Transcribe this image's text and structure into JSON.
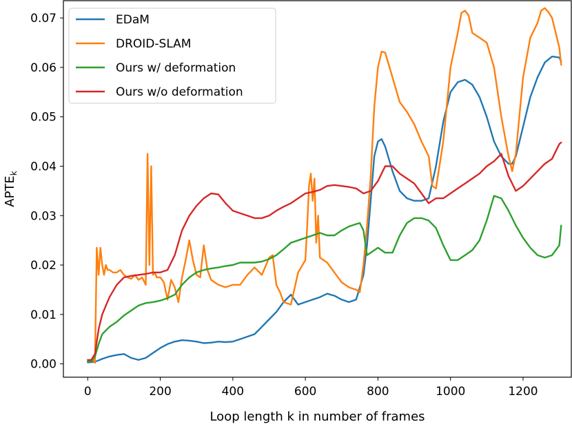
{
  "chart_data": {
    "type": "line",
    "title": "",
    "xlabel": "Loop length k in number of frames",
    "ylabel": "APTE",
    "ylabel_subscript": "k",
    "xlim": [
      -67,
      1333
    ],
    "ylim": [
      -0.0027,
      0.0735
    ],
    "xticks": [
      0,
      200,
      400,
      600,
      800,
      1000,
      1200
    ],
    "yticks": [
      0.0,
      0.01,
      0.02,
      0.03,
      0.04,
      0.05,
      0.06,
      0.07
    ],
    "ytick_labels": [
      "0.00",
      "0.01",
      "0.02",
      "0.03",
      "0.04",
      "0.05",
      "0.06",
      "0.07"
    ],
    "grid": false,
    "legend_position": "top-left",
    "series": [
      {
        "name": "EDaM",
        "color": "#1f77b4",
        "x": [
          0,
          20,
          40,
          60,
          80,
          100,
          120,
          140,
          160,
          180,
          200,
          220,
          240,
          260,
          280,
          300,
          320,
          340,
          360,
          380,
          400,
          420,
          440,
          460,
          480,
          500,
          520,
          540,
          560,
          580,
          600,
          620,
          640,
          660,
          680,
          700,
          720,
          740,
          760,
          770,
          780,
          790,
          800,
          810,
          820,
          840,
          860,
          880,
          900,
          920,
          940,
          960,
          980,
          1000,
          1020,
          1040,
          1060,
          1080,
          1100,
          1120,
          1140,
          1160,
          1170,
          1180,
          1200,
          1220,
          1240,
          1260,
          1280,
          1300,
          1305
        ],
        "y": [
          0.0003,
          0.0004,
          0.001,
          0.0015,
          0.0018,
          0.002,
          0.0012,
          0.0008,
          0.0012,
          0.0022,
          0.0032,
          0.004,
          0.0045,
          0.0048,
          0.0047,
          0.0045,
          0.0042,
          0.0043,
          0.0045,
          0.0044,
          0.0045,
          0.005,
          0.0055,
          0.006,
          0.0075,
          0.009,
          0.0105,
          0.0125,
          0.014,
          0.012,
          0.0125,
          0.013,
          0.0135,
          0.0142,
          0.0138,
          0.013,
          0.0125,
          0.013,
          0.018,
          0.024,
          0.033,
          0.042,
          0.045,
          0.0455,
          0.044,
          0.039,
          0.035,
          0.0335,
          0.033,
          0.033,
          0.0335,
          0.04,
          0.049,
          0.055,
          0.057,
          0.0575,
          0.0565,
          0.054,
          0.05,
          0.045,
          0.042,
          0.0405,
          0.0405,
          0.042,
          0.048,
          0.054,
          0.058,
          0.061,
          0.0622,
          0.062,
          0.0612
        ]
      },
      {
        "name": "DROID-SLAM",
        "color": "#ff7f0e",
        "x": [
          0,
          15,
          20,
          25,
          30,
          35,
          40,
          45,
          50,
          55,
          60,
          70,
          80,
          90,
          100,
          110,
          120,
          130,
          140,
          150,
          160,
          165,
          170,
          175,
          180,
          185,
          190,
          200,
          210,
          220,
          230,
          240,
          250,
          260,
          270,
          280,
          290,
          300,
          310,
          320,
          330,
          340,
          360,
          380,
          400,
          420,
          440,
          460,
          480,
          500,
          510,
          520,
          530,
          540,
          560,
          580,
          600,
          605,
          610,
          615,
          620,
          625,
          630,
          635,
          640,
          660,
          680,
          700,
          720,
          740,
          750,
          760,
          770,
          780,
          790,
          800,
          810,
          820,
          840,
          860,
          880,
          900,
          920,
          940,
          950,
          960,
          980,
          1000,
          1020,
          1030,
          1040,
          1050,
          1060,
          1080,
          1100,
          1120,
          1140,
          1160,
          1170,
          1180,
          1200,
          1220,
          1240,
          1250,
          1260,
          1270,
          1280,
          1300,
          1305
        ],
        "y": [
          0.0005,
          0.0008,
          0.0002,
          0.0235,
          0.018,
          0.0235,
          0.02,
          0.018,
          0.02,
          0.019,
          0.019,
          0.0185,
          0.0185,
          0.019,
          0.018,
          0.0175,
          0.0172,
          0.018,
          0.017,
          0.0175,
          0.016,
          0.0425,
          0.02,
          0.04,
          0.018,
          0.0185,
          0.0175,
          0.0175,
          0.0165,
          0.013,
          0.017,
          0.0155,
          0.0125,
          0.0175,
          0.021,
          0.025,
          0.021,
          0.018,
          0.0175,
          0.024,
          0.019,
          0.017,
          0.016,
          0.0155,
          0.016,
          0.016,
          0.018,
          0.0195,
          0.018,
          0.0215,
          0.022,
          0.016,
          0.0145,
          0.0125,
          0.012,
          0.0185,
          0.021,
          0.028,
          0.036,
          0.0385,
          0.033,
          0.0375,
          0.0245,
          0.03,
          0.0215,
          0.0205,
          0.0185,
          0.0165,
          0.0155,
          0.015,
          0.0145,
          0.02,
          0.028,
          0.038,
          0.052,
          0.06,
          0.0632,
          0.063,
          0.058,
          0.053,
          0.051,
          0.0485,
          0.045,
          0.042,
          0.036,
          0.0355,
          0.045,
          0.06,
          0.067,
          0.071,
          0.0715,
          0.0705,
          0.067,
          0.066,
          0.065,
          0.06,
          0.05,
          0.042,
          0.039,
          0.0425,
          0.058,
          0.066,
          0.069,
          0.0715,
          0.072,
          0.0712,
          0.07,
          0.064,
          0.0605
        ]
      },
      {
        "name": "Ours w/ deformation",
        "color": "#2ca02c",
        "x": [
          0,
          10,
          20,
          30,
          40,
          60,
          80,
          100,
          120,
          140,
          160,
          180,
          200,
          220,
          240,
          260,
          280,
          300,
          320,
          340,
          360,
          380,
          400,
          420,
          440,
          460,
          480,
          500,
          520,
          540,
          560,
          580,
          600,
          620,
          640,
          660,
          680,
          700,
          720,
          740,
          750,
          760,
          770,
          780,
          800,
          820,
          840,
          860,
          880,
          900,
          920,
          940,
          960,
          980,
          1000,
          1020,
          1040,
          1060,
          1080,
          1100,
          1120,
          1140,
          1160,
          1180,
          1200,
          1220,
          1240,
          1260,
          1280,
          1300,
          1305
        ],
        "y": [
          0.0005,
          0.0005,
          0.0015,
          0.004,
          0.006,
          0.0075,
          0.0085,
          0.0098,
          0.0108,
          0.0118,
          0.0123,
          0.0125,
          0.0128,
          0.0133,
          0.014,
          0.016,
          0.0175,
          0.0185,
          0.019,
          0.0193,
          0.0195,
          0.0198,
          0.02,
          0.0205,
          0.0205,
          0.0205,
          0.0207,
          0.0212,
          0.022,
          0.0232,
          0.0245,
          0.025,
          0.0255,
          0.026,
          0.0265,
          0.026,
          0.026,
          0.027,
          0.0278,
          0.0283,
          0.0285,
          0.027,
          0.022,
          0.0225,
          0.0235,
          0.0225,
          0.0225,
          0.026,
          0.0285,
          0.0295,
          0.0295,
          0.029,
          0.0275,
          0.024,
          0.021,
          0.021,
          0.022,
          0.023,
          0.025,
          0.029,
          0.034,
          0.0335,
          0.031,
          0.028,
          0.0255,
          0.0235,
          0.022,
          0.0215,
          0.022,
          0.024,
          0.028
        ]
      },
      {
        "name": "Ours w/o deformation",
        "color": "#d62728",
        "x": [
          0,
          10,
          20,
          30,
          40,
          60,
          80,
          100,
          120,
          140,
          160,
          180,
          200,
          220,
          240,
          260,
          280,
          300,
          320,
          340,
          360,
          380,
          400,
          420,
          440,
          460,
          480,
          500,
          520,
          540,
          560,
          580,
          600,
          620,
          640,
          660,
          680,
          700,
          720,
          740,
          760,
          780,
          800,
          820,
          840,
          860,
          880,
          900,
          920,
          940,
          960,
          980,
          1000,
          1020,
          1040,
          1060,
          1080,
          1100,
          1120,
          1140,
          1160,
          1180,
          1200,
          1220,
          1240,
          1260,
          1280,
          1300,
          1305
        ],
        "y": [
          0.0008,
          0.0008,
          0.002,
          0.007,
          0.01,
          0.0135,
          0.016,
          0.0175,
          0.0178,
          0.018,
          0.0182,
          0.0185,
          0.0185,
          0.019,
          0.022,
          0.027,
          0.03,
          0.032,
          0.0335,
          0.0345,
          0.0343,
          0.0325,
          0.031,
          0.0305,
          0.03,
          0.0295,
          0.0295,
          0.03,
          0.031,
          0.0318,
          0.0325,
          0.0335,
          0.0345,
          0.0348,
          0.0352,
          0.036,
          0.0362,
          0.036,
          0.0358,
          0.0355,
          0.0345,
          0.035,
          0.037,
          0.04,
          0.04,
          0.0385,
          0.0375,
          0.0365,
          0.0345,
          0.0325,
          0.0335,
          0.0335,
          0.0345,
          0.0355,
          0.0365,
          0.0375,
          0.0385,
          0.04,
          0.041,
          0.0425,
          0.038,
          0.035,
          0.036,
          0.0375,
          0.039,
          0.0405,
          0.0415,
          0.0445,
          0.0448
        ]
      }
    ]
  }
}
